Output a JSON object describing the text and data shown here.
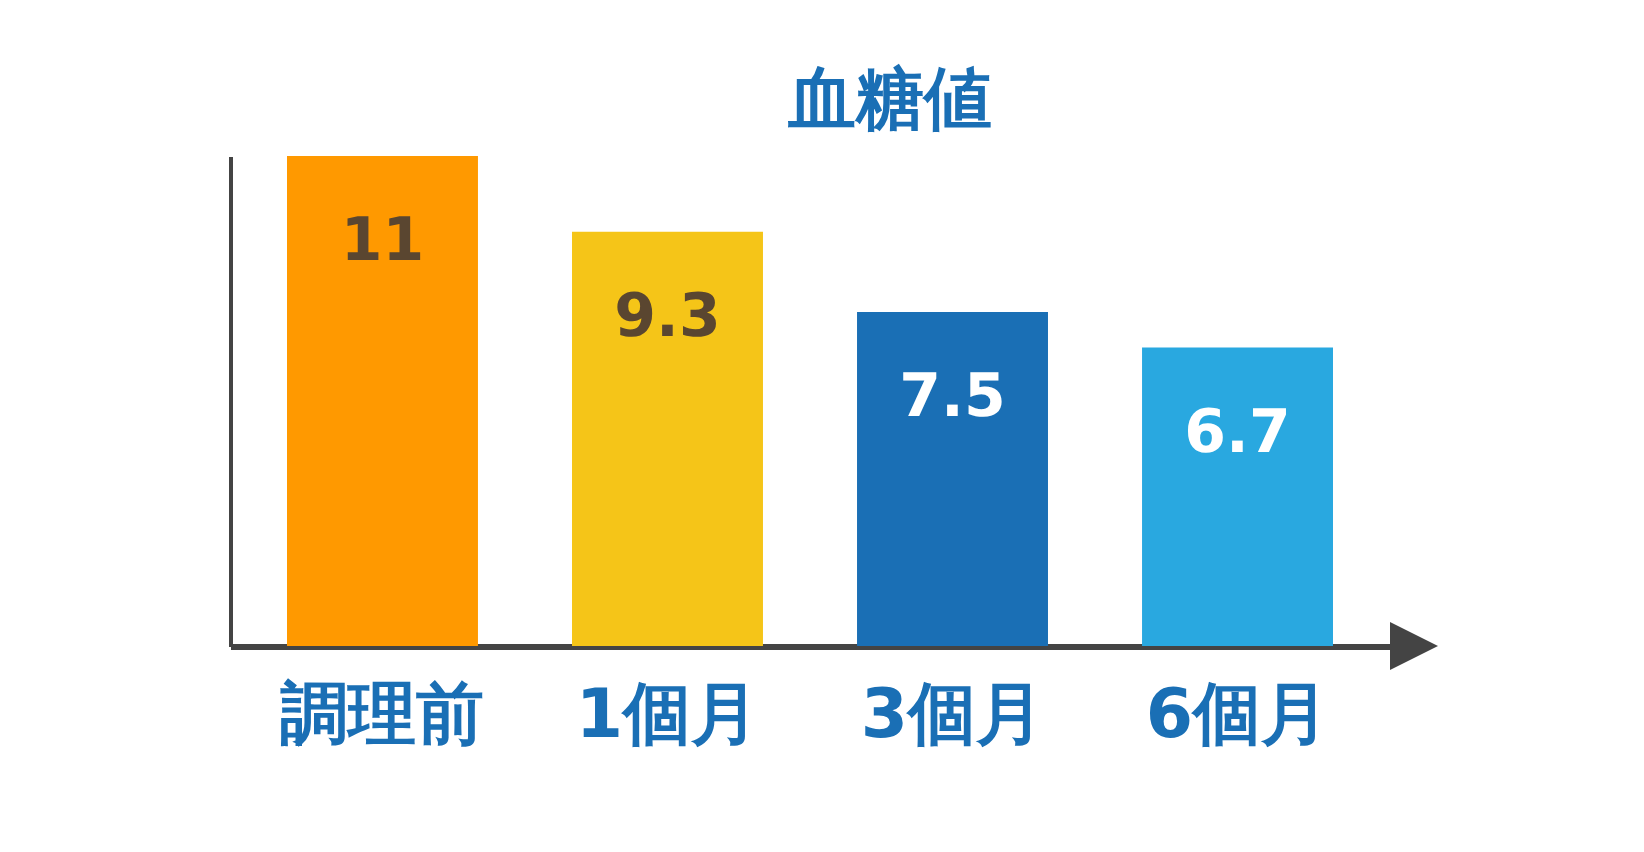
{
  "chart_data": {
    "type": "bar",
    "title": "血糖値",
    "categories": [
      "調理前",
      "1個月",
      "3個月",
      "6個月"
    ],
    "values": [
      11,
      9.3,
      7.5,
      6.7
    ],
    "colors": [
      "#ff9900",
      "#f5c518",
      "#1a6fb5",
      "#29a8e0"
    ],
    "data_labels": true,
    "grid": false,
    "tick_labels": "x"
  }
}
